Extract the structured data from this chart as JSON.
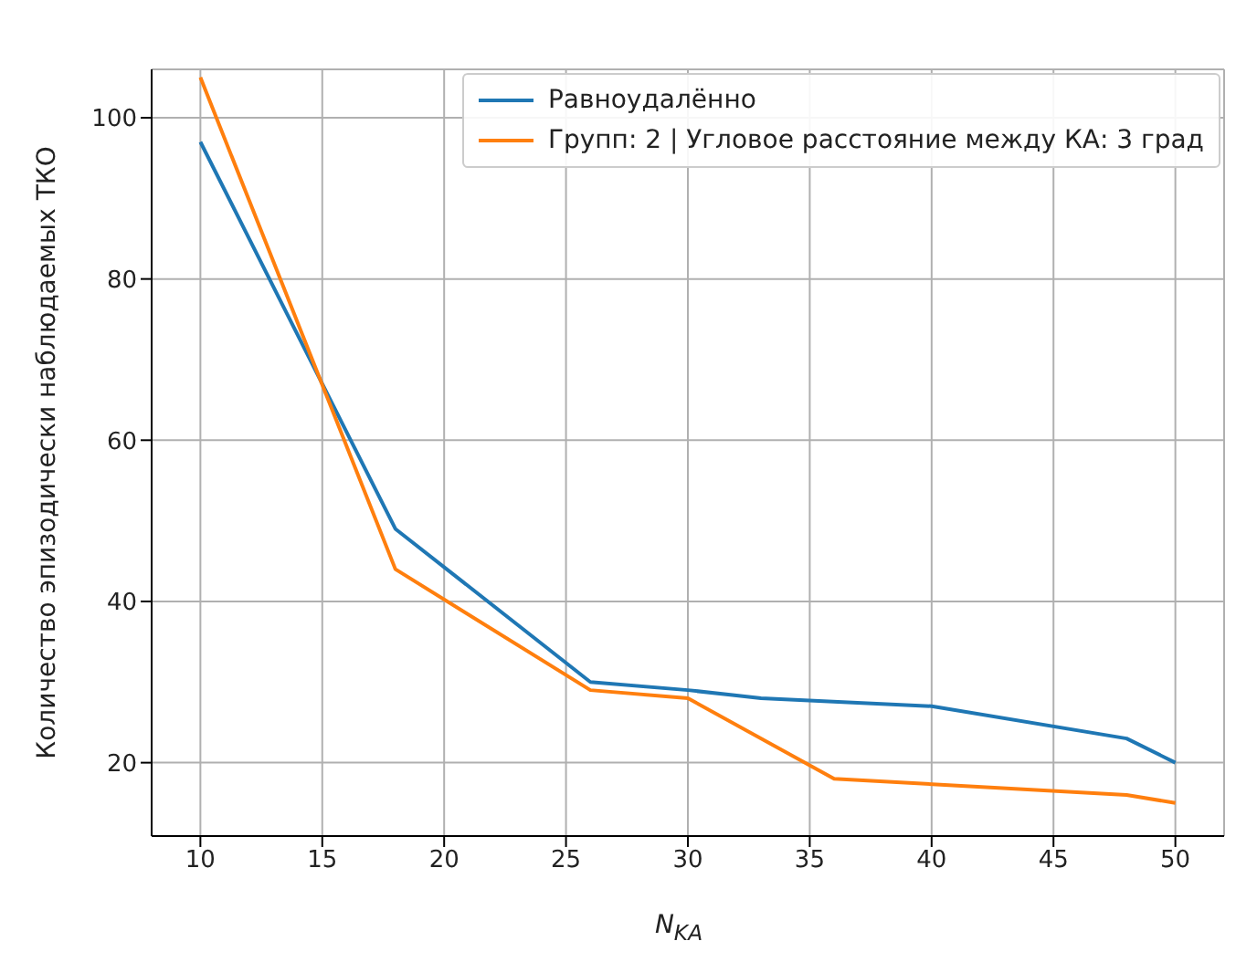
{
  "chart_data": {
    "type": "line",
    "xlabel": "N$_{KA}$",
    "ylabel": "Количество эпизодически наблюдаемых ТКО",
    "x": [
      10,
      18,
      26,
      30,
      33,
      40,
      48,
      50
    ],
    "series": [
      {
        "name": "Равноудалённо",
        "color": "#1f77b4",
        "values": [
          97,
          49,
          30,
          29,
          28,
          27,
          23,
          20
        ]
      },
      {
        "name": "Групп: 2 | Угловое расстояние между КА: 3 град",
        "color": "#ff7f0e",
        "x": [
          10,
          18,
          26,
          30,
          36,
          48,
          50
        ],
        "values": [
          105,
          44,
          29,
          28,
          18,
          16,
          15
        ]
      }
    ],
    "xlim": [
      8,
      52
    ],
    "xticks": [
      10,
      15,
      20,
      25,
      30,
      35,
      40,
      45,
      50
    ],
    "ylim": [
      10.9,
      106
    ],
    "yticks": [
      20,
      40,
      60,
      80,
      100
    ],
    "grid": true,
    "legend": "top right",
    "marker": "none",
    "line_style": "solid"
  }
}
